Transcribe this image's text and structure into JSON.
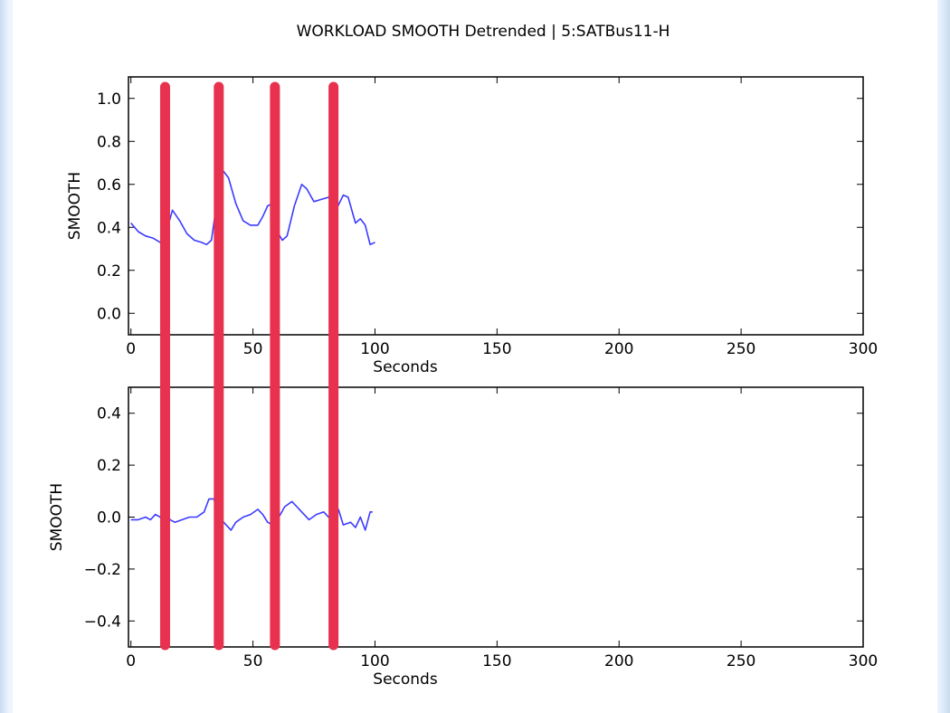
{
  "chart_data": {
    "title": "WORKLOAD SMOOTH Detrended | 5:SATBus11-H",
    "colors": {
      "series": "#3b3bff",
      "markers": "#e8304f",
      "frame": "#000000"
    },
    "grid": false,
    "legend": "none",
    "markers": {
      "type": "vertical-lines",
      "x": [
        14,
        36,
        59,
        83
      ]
    },
    "subplots": [
      {
        "type": "line",
        "xlabel": "Seconds",
        "ylabel": "SMOOTH",
        "xlim": [
          -1,
          300
        ],
        "ylim": [
          -0.1,
          1.1
        ],
        "xticks": [
          "0",
          "50",
          "100",
          "150",
          "200",
          "250",
          "300"
        ],
        "yticks": [
          "0.0",
          "0.2",
          "0.4",
          "0.6",
          "0.8",
          "1.0"
        ],
        "series": [
          {
            "x": [
              0,
              3,
              6,
              9,
              12,
              14,
              17,
              20,
              23,
              26,
              29,
              31,
              33,
              35,
              36,
              38,
              40,
              43,
              46,
              49,
              52,
              54,
              56,
              58,
              60,
              62,
              64,
              67,
              70,
              72,
              75,
              78,
              81,
              84,
              87,
              89,
              92,
              94,
              96,
              98,
              100
            ],
            "y": [
              0.42,
              0.38,
              0.36,
              0.35,
              0.33,
              0.36,
              0.48,
              0.43,
              0.37,
              0.34,
              0.33,
              0.32,
              0.34,
              0.5,
              0.62,
              0.66,
              0.63,
              0.51,
              0.43,
              0.41,
              0.41,
              0.45,
              0.5,
              0.51,
              0.38,
              0.34,
              0.36,
              0.5,
              0.6,
              0.58,
              0.52,
              0.53,
              0.54,
              0.48,
              0.55,
              0.54,
              0.42,
              0.44,
              0.41,
              0.32,
              0.33
            ]
          }
        ]
      },
      {
        "type": "line",
        "xlabel": "Seconds",
        "ylabel": "SMOOTH",
        "xlim": [
          -1,
          300
        ],
        "ylim": [
          -0.5,
          0.5
        ],
        "xticks": [
          "0",
          "50",
          "100",
          "150",
          "200",
          "250",
          "300"
        ],
        "yticks": [
          "−0.4",
          "−0.2",
          "0.0",
          "0.2",
          "0.4"
        ],
        "series": [
          {
            "x": [
              0,
              3,
              6,
              8,
              10,
              12,
              14,
              16,
              18,
              21,
              24,
              27,
              30,
              32,
              34,
              36,
              38,
              41,
              43,
              46,
              49,
              52,
              54,
              56,
              58,
              60,
              63,
              66,
              68,
              70,
              73,
              76,
              79,
              82,
              85,
              87,
              90,
              92,
              94,
              96,
              98,
              99
            ],
            "y": [
              -0.01,
              -0.01,
              0.0,
              -0.01,
              0.01,
              0.0,
              0.03,
              -0.01,
              -0.02,
              -0.01,
              0.0,
              0.0,
              0.02,
              0.07,
              0.07,
              0.01,
              -0.02,
              -0.05,
              -0.02,
              0.0,
              0.01,
              0.03,
              0.01,
              -0.02,
              -0.03,
              -0.01,
              0.04,
              0.06,
              0.04,
              0.02,
              -0.01,
              0.01,
              0.02,
              -0.01,
              0.03,
              -0.03,
              -0.02,
              -0.04,
              0.0,
              -0.05,
              0.02,
              0.02
            ]
          }
        ]
      }
    ]
  }
}
